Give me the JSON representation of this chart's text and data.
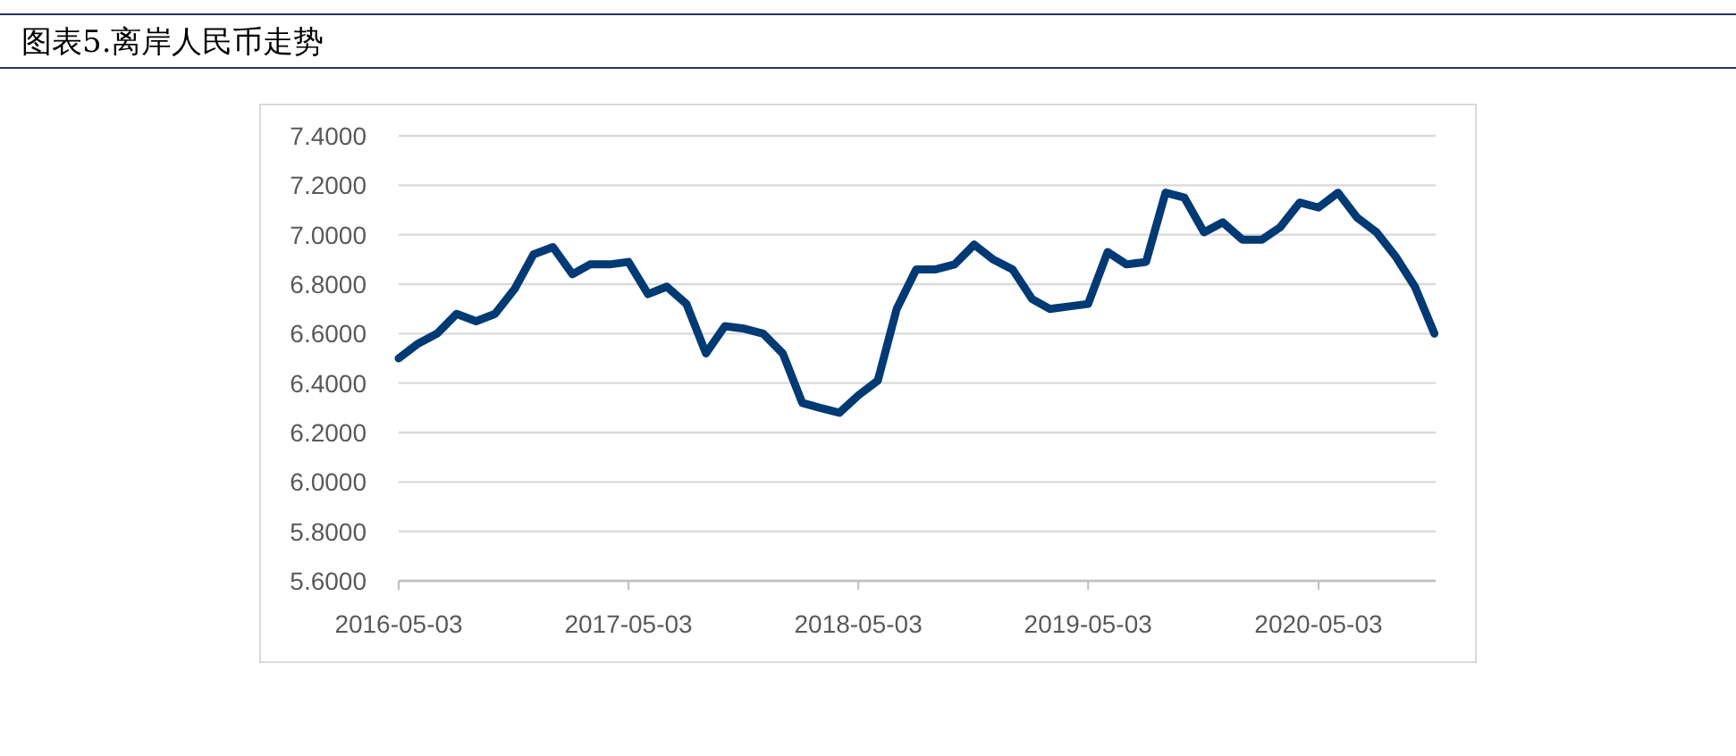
{
  "chart_data": {
    "type": "line",
    "title": "图表5.离岸人民币走势",
    "x": [
      "2016-05-03",
      "2016-06-03",
      "2016-07-03",
      "2016-08-03",
      "2016-09-03",
      "2016-10-03",
      "2016-11-03",
      "2016-12-03",
      "2017-01-03",
      "2017-02-03",
      "2017-03-03",
      "2017-04-03",
      "2017-05-03",
      "2017-06-03",
      "2017-07-03",
      "2017-08-03",
      "2017-09-03",
      "2017-10-03",
      "2017-11-03",
      "2017-12-03",
      "2018-01-03",
      "2018-02-03",
      "2018-03-03",
      "2018-04-03",
      "2018-05-03",
      "2018-06-03",
      "2018-07-03",
      "2018-08-03",
      "2018-09-03",
      "2018-10-03",
      "2018-11-03",
      "2018-12-03",
      "2019-01-03",
      "2019-02-03",
      "2019-03-03",
      "2019-04-03",
      "2019-05-03",
      "2019-06-03",
      "2019-07-03",
      "2019-08-03",
      "2019-09-03",
      "2019-10-03",
      "2019-11-03",
      "2019-12-03",
      "2020-01-03",
      "2020-02-03",
      "2020-03-03",
      "2020-04-03",
      "2020-05-03",
      "2020-06-03",
      "2020-07-03",
      "2020-08-03",
      "2020-09-03",
      "2020-10-03",
      "2020-11-03"
    ],
    "series": [
      {
        "color": "#003a75",
        "values": [
          6.5,
          6.56,
          6.6,
          6.68,
          6.65,
          6.68,
          6.78,
          6.92,
          6.95,
          6.84,
          6.88,
          6.88,
          6.89,
          6.76,
          6.79,
          6.72,
          6.52,
          6.63,
          6.62,
          6.6,
          6.52,
          6.32,
          6.3,
          6.28,
          6.35,
          6.41,
          6.7,
          6.86,
          6.86,
          6.88,
          6.96,
          6.9,
          6.86,
          6.74,
          6.7,
          6.71,
          6.72,
          6.93,
          6.88,
          6.89,
          7.17,
          7.15,
          7.01,
          7.05,
          6.98,
          6.98,
          7.03,
          7.13,
          7.11,
          7.17,
          7.07,
          7.01,
          6.91,
          6.79,
          6.6
        ]
      }
    ],
    "xlim": [
      "2016-05-03",
      "2020-11-05"
    ],
    "xticks": [
      "2016-05-03",
      "2017-05-03",
      "2018-05-03",
      "2019-05-03",
      "2020-05-03"
    ],
    "ylim": [
      5.6,
      7.4
    ],
    "yticks": [
      {
        "value": 5.6,
        "label": "5.6000"
      },
      {
        "value": 5.8,
        "label": "5.8000"
      },
      {
        "value": 6.0,
        "label": "6.0000"
      },
      {
        "value": 6.2,
        "label": "6.2000"
      },
      {
        "value": 6.4,
        "label": "6.4000"
      },
      {
        "value": 6.6,
        "label": "6.6000"
      },
      {
        "value": 6.8,
        "label": "6.8000"
      },
      {
        "value": 7.0,
        "label": "7.0000"
      },
      {
        "value": 7.2,
        "label": "7.2000"
      },
      {
        "value": 7.4,
        "label": "7.4000"
      }
    ],
    "grid": "y",
    "marker": "none",
    "line_style": "solid"
  }
}
